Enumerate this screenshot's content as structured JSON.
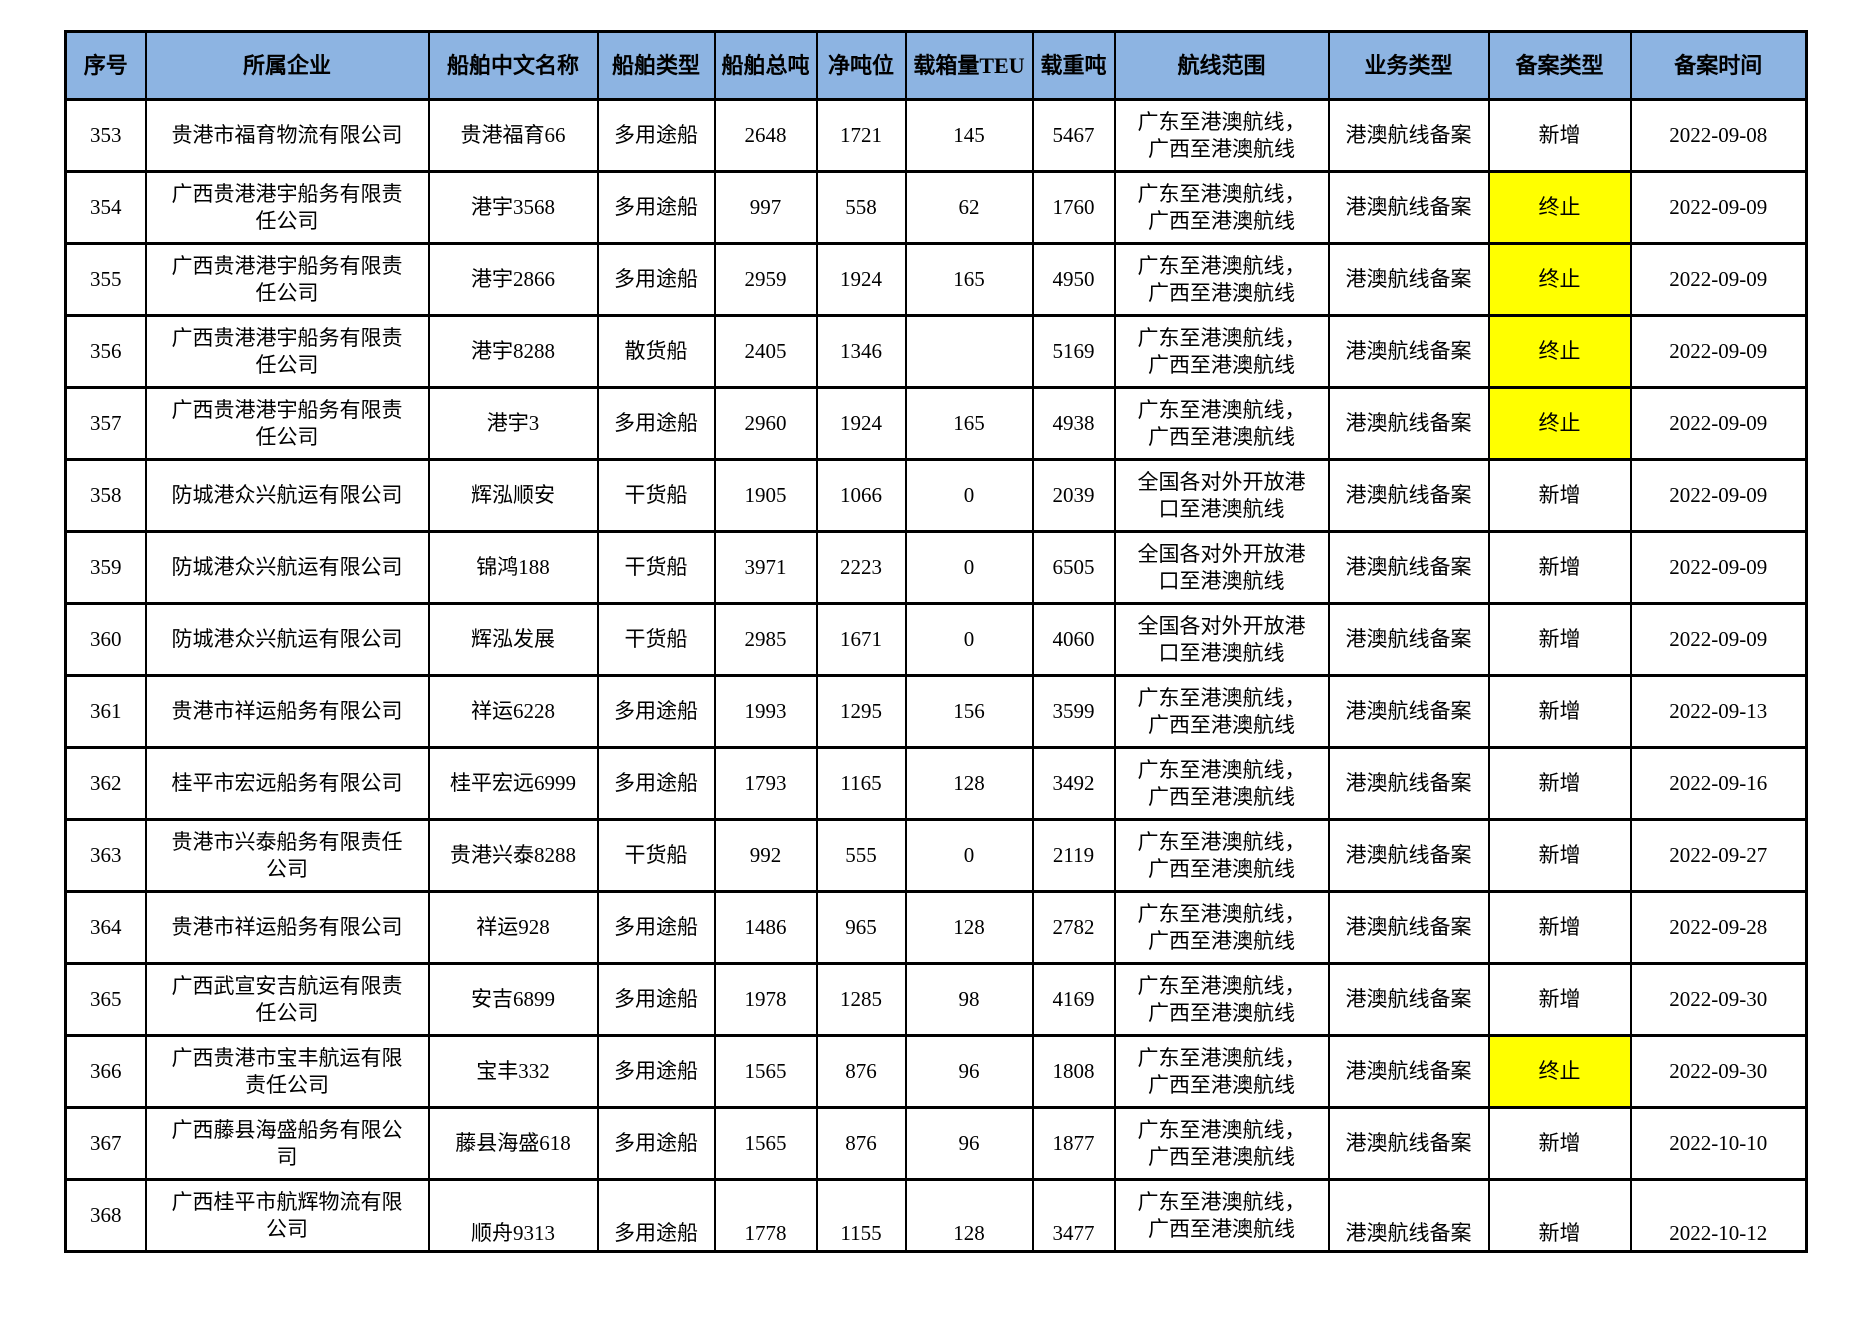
{
  "table": {
    "colors": {
      "header_bg": "#8DB4E2",
      "highlight": "#FFFF00",
      "border": "#000000",
      "text": "#000000"
    },
    "columns": [
      {
        "key": "seq",
        "label": "序号"
      },
      {
        "key": "company",
        "label": "所属企业"
      },
      {
        "key": "ship_name",
        "label": "船舶中文名称"
      },
      {
        "key": "ship_type",
        "label": "船舶类型"
      },
      {
        "key": "gross_tonnage",
        "label": "船舶总吨"
      },
      {
        "key": "net_tonnage",
        "label": "净吨位"
      },
      {
        "key": "teu",
        "label": "载箱量TEU"
      },
      {
        "key": "deadweight",
        "label": "载重吨"
      },
      {
        "key": "route",
        "label": "航线范围"
      },
      {
        "key": "business_type",
        "label": "业务类型"
      },
      {
        "key": "filing_type",
        "label": "备案类型"
      },
      {
        "key": "filing_date",
        "label": "备案时间"
      }
    ],
    "rows": [
      {
        "seq": "353",
        "company": "贵港市福育物流有限公司",
        "ship_name": "贵港福育66",
        "ship_type": "多用途船",
        "gross_tonnage": "2648",
        "net_tonnage": "1721",
        "teu": "145",
        "deadweight": "5467",
        "route": "广东至港澳航线，广西至港澳航线",
        "business_type": "港澳航线备案",
        "filing_type": "新增",
        "filing_type_highlight": false,
        "filing_date": "2022-09-08"
      },
      {
        "seq": "354",
        "company": "广西贵港港宇船务有限责任公司",
        "ship_name": "港宇3568",
        "ship_type": "多用途船",
        "gross_tonnage": "997",
        "net_tonnage": "558",
        "teu": "62",
        "deadweight": "1760",
        "route": "广东至港澳航线，广西至港澳航线",
        "business_type": "港澳航线备案",
        "filing_type": "终止",
        "filing_type_highlight": true,
        "filing_date": "2022-09-09"
      },
      {
        "seq": "355",
        "company": "广西贵港港宇船务有限责任公司",
        "ship_name": "港宇2866",
        "ship_type": "多用途船",
        "gross_tonnage": "2959",
        "net_tonnage": "1924",
        "teu": "165",
        "deadweight": "4950",
        "route": "广东至港澳航线，广西至港澳航线",
        "business_type": "港澳航线备案",
        "filing_type": "终止",
        "filing_type_highlight": true,
        "filing_date": "2022-09-09"
      },
      {
        "seq": "356",
        "company": "广西贵港港宇船务有限责任公司",
        "ship_name": "港宇8288",
        "ship_type": "散货船",
        "gross_tonnage": "2405",
        "net_tonnage": "1346",
        "teu": "",
        "deadweight": "5169",
        "route": "广东至港澳航线，广西至港澳航线",
        "business_type": "港澳航线备案",
        "filing_type": "终止",
        "filing_type_highlight": true,
        "filing_date": "2022-09-09"
      },
      {
        "seq": "357",
        "company": "广西贵港港宇船务有限责任公司",
        "ship_name": "港宇3",
        "ship_type": "多用途船",
        "gross_tonnage": "2960",
        "net_tonnage": "1924",
        "teu": "165",
        "deadweight": "4938",
        "route": "广东至港澳航线，广西至港澳航线",
        "business_type": "港澳航线备案",
        "filing_type": "终止",
        "filing_type_highlight": true,
        "filing_date": "2022-09-09"
      },
      {
        "seq": "358",
        "company": "防城港众兴航运有限公司",
        "ship_name": "辉泓顺安",
        "ship_type": "干货船",
        "gross_tonnage": "1905",
        "net_tonnage": "1066",
        "teu": "0",
        "deadweight": "2039",
        "route": "全国各对外开放港口至港澳航线",
        "business_type": "港澳航线备案",
        "filing_type": "新增",
        "filing_type_highlight": false,
        "filing_date": "2022-09-09"
      },
      {
        "seq": "359",
        "company": "防城港众兴航运有限公司",
        "ship_name": "锦鸿188",
        "ship_type": "干货船",
        "gross_tonnage": "3971",
        "net_tonnage": "2223",
        "teu": "0",
        "deadweight": "6505",
        "route": "全国各对外开放港口至港澳航线",
        "business_type": "港澳航线备案",
        "filing_type": "新增",
        "filing_type_highlight": false,
        "filing_date": "2022-09-09"
      },
      {
        "seq": "360",
        "company": "防城港众兴航运有限公司",
        "ship_name": "辉泓发展",
        "ship_type": "干货船",
        "gross_tonnage": "2985",
        "net_tonnage": "1671",
        "teu": "0",
        "deadweight": "4060",
        "route": "全国各对外开放港口至港澳航线",
        "business_type": "港澳航线备案",
        "filing_type": "新增",
        "filing_type_highlight": false,
        "filing_date": "2022-09-09"
      },
      {
        "seq": "361",
        "company": "贵港市祥运船务有限公司",
        "ship_name": "祥运6228",
        "ship_type": "多用途船",
        "gross_tonnage": "1993",
        "net_tonnage": "1295",
        "teu": "156",
        "deadweight": "3599",
        "route": "广东至港澳航线，广西至港澳航线",
        "business_type": "港澳航线备案",
        "filing_type": "新增",
        "filing_type_highlight": false,
        "filing_date": "2022-09-13"
      },
      {
        "seq": "362",
        "company": "桂平市宏远船务有限公司",
        "ship_name": "桂平宏远6999",
        "ship_type": "多用途船",
        "gross_tonnage": "1793",
        "net_tonnage": "1165",
        "teu": "128",
        "deadweight": "3492",
        "route": "广东至港澳航线，广西至港澳航线",
        "business_type": "港澳航线备案",
        "filing_type": "新增",
        "filing_type_highlight": false,
        "filing_date": "2022-09-16"
      },
      {
        "seq": "363",
        "company": "贵港市兴泰船务有限责任公司",
        "ship_name": "贵港兴泰8288",
        "ship_type": "干货船",
        "gross_tonnage": "992",
        "net_tonnage": "555",
        "teu": "0",
        "deadweight": "2119",
        "route": "广东至港澳航线，广西至港澳航线",
        "business_type": "港澳航线备案",
        "filing_type": "新增",
        "filing_type_highlight": false,
        "filing_date": "2022-09-27"
      },
      {
        "seq": "364",
        "company": "贵港市祥运船务有限公司",
        "ship_name": "祥运928",
        "ship_type": "多用途船",
        "gross_tonnage": "1486",
        "net_tonnage": "965",
        "teu": "128",
        "deadweight": "2782",
        "route": "广东至港澳航线，广西至港澳航线",
        "business_type": "港澳航线备案",
        "filing_type": "新增",
        "filing_type_highlight": false,
        "filing_date": "2022-09-28"
      },
      {
        "seq": "365",
        "company": "广西武宣安吉航运有限责任公司",
        "ship_name": "安吉6899",
        "ship_type": "多用途船",
        "gross_tonnage": "1978",
        "net_tonnage": "1285",
        "teu": "98",
        "deadweight": "4169",
        "route": "广东至港澳航线，广西至港澳航线",
        "business_type": "港澳航线备案",
        "filing_type": "新增",
        "filing_type_highlight": false,
        "filing_date": "2022-09-30"
      },
      {
        "seq": "366",
        "company": "广西贵港市宝丰航运有限责任公司",
        "ship_name": "宝丰332",
        "ship_type": "多用途船",
        "gross_tonnage": "1565",
        "net_tonnage": "876",
        "teu": "96",
        "deadweight": "1808",
        "route": "广东至港澳航线，广西至港澳航线",
        "business_type": "港澳航线备案",
        "filing_type": "终止",
        "filing_type_highlight": true,
        "filing_date": "2022-09-30"
      },
      {
        "seq": "367",
        "company": "广西藤县海盛船务有限公司",
        "ship_name": "藤县海盛618",
        "ship_type": "多用途船",
        "gross_tonnage": "1565",
        "net_tonnage": "876",
        "teu": "96",
        "deadweight": "1877",
        "route": "广东至港澳航线，广西至港澳航线",
        "business_type": "港澳航线备案",
        "filing_type": "新增",
        "filing_type_highlight": false,
        "filing_date": "2022-10-10"
      },
      {
        "seq": "368",
        "company": "广西桂平市航辉物流有限公司",
        "ship_name": "顺舟9313",
        "ship_type": "多用途船",
        "gross_tonnage": "1778",
        "net_tonnage": "1155",
        "teu": "128",
        "deadweight": "3477",
        "route": "广东至港澳航线，广西至港澳航线",
        "business_type": "港澳航线备案",
        "filing_type": "新增",
        "filing_type_highlight": false,
        "filing_date": "2022-10-12",
        "valign": "bottom"
      }
    ]
  }
}
